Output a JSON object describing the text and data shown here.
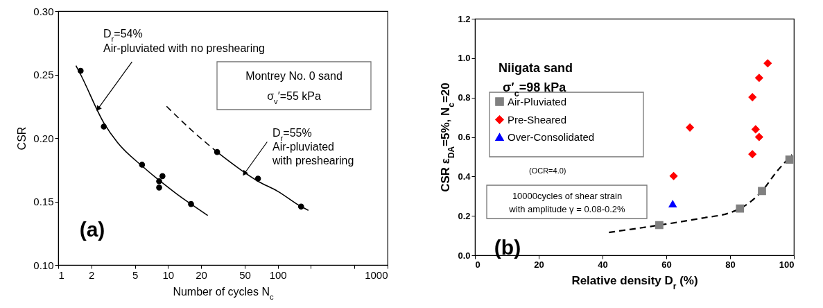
{
  "chart_data": [
    {
      "type": "scatter",
      "xlabel": "Number of cycles N$_{c}$",
      "ylabel": "CSR",
      "log": "x",
      "grid": false,
      "xlim": [
        1,
        1000
      ],
      "xticks": [
        1,
        2,
        5,
        10,
        20,
        50,
        100,
        {
          "value": 200,
          "label": null
        },
        {
          "value": 500,
          "label": null
        },
        1000
      ],
      "ylim": [
        0.1,
        0.3
      ],
      "yticks": [
        {
          "value": 0.1,
          "label": "0.10"
        },
        {
          "value": 0.15,
          "label": "0.15"
        },
        {
          "value": 0.2,
          "label": "0.20"
        },
        {
          "value": 0.25,
          "label": "0.25"
        },
        {
          "value": 0.3,
          "label": "0.30"
        }
      ],
      "annotations": [
        "D$_{r}$=54%",
        {
          "text": "Air-pluviated with no preshearing",
          "x": 2.3,
          "y": 0.223
        },
        "Montrey No. 0 sand",
        "σ$_{v}$′=55 kPa",
        {
          "text": "D$_{r}$=55%",
          "x": 49.6,
          "y": 0.172
        },
        "Air-pluviated",
        "with preshearing",
        "(a)"
      ],
      "series": [
        {
          "color": "#000000",
          "marker": "circle",
          "x": [
            1.6,
            2.6,
            5.8,
            8.3,
            8.9,
            8.3,
            16.2
          ],
          "values": [
            0.253,
            0.209,
            0.179,
            0.166,
            0.17,
            0.161,
            0.148
          ]
        },
        {
          "type": "line",
          "color": "#000000",
          "line_style": "solid",
          "x": [
            1.45,
            1.6,
            2.6,
            3.5,
            5.8,
            8.5,
            12,
            16.2,
            23
          ],
          "values": [
            0.257,
            0.25,
            0.212,
            0.196,
            0.178,
            0.166,
            0.156,
            0.148,
            0.139
          ]
        },
        {
          "color": "#000000",
          "marker": "circle",
          "x": [
            28,
            66,
            163
          ],
          "values": [
            0.189,
            0.168,
            0.146
          ]
        },
        {
          "type": "line",
          "color": "#000000",
          "line_style": "dashed",
          "x": [
            9.7,
            16,
            28
          ],
          "values": [
            0.225,
            0.207,
            0.189
          ]
        },
        {
          "type": "line",
          "color": "#000000",
          "line_style": "solid",
          "x": [
            28,
            66,
            100,
            163,
            190
          ],
          "values": [
            0.189,
            0.166,
            0.158,
            0.146,
            0.143
          ]
        }
      ]
    },
    {
      "type": "scatter",
      "xlabel": "Relative density D$_{r}$ (%)",
      "ylabel": "CSR  ε$_{DA}$=5%,  N$_{c}$=20",
      "grid": false,
      "legend": "top left",
      "xlim": [
        0,
        100
      ],
      "xticks": [
        0,
        20,
        40,
        60,
        80,
        100
      ],
      "ylim": [
        0,
        1.2
      ],
      "yticks": [
        {
          "value": 0,
          "label": "0.0"
        },
        0.2,
        0.4,
        0.6,
        0.8,
        {
          "value": 1,
          "label": "1.0"
        },
        1.2
      ],
      "annotations": [
        "Niigata sand",
        "σ′$_{c}$=98 kPa",
        "(OCR=4.0)",
        "10000cycles of shear strain",
        "with amplitude γ = 0.08-0.2%",
        "(b)"
      ],
      "series": [
        {
          "name": "Air-Pluviated",
          "color": "#808080",
          "marker": "square",
          "x": [
            57.8,
            83.1,
            90,
            98.6
          ],
          "values": [
            0.153,
            0.237,
            0.326,
            0.485
          ]
        },
        {
          "name": "Pre-Sheared",
          "color": "#ff0000",
          "marker": "diamond",
          "x": [
            62.3,
            67.4,
            87,
            87,
            88,
            89.1,
            89.1,
            91.8
          ],
          "values": [
            0.402,
            0.648,
            0.513,
            0.802,
            0.639,
            0.6,
            0.9,
            0.974
          ]
        },
        {
          "name": "Over-Consolidated",
          "color": "#0000ff",
          "marker": "triangle",
          "x": [
            62
          ],
          "values": [
            0.261
          ]
        },
        {
          "type": "line",
          "color": "#000000",
          "line_style": "dashed",
          "x": [
            42,
            57.8,
            71.4,
            79.8,
            83.1,
            90,
            94.6,
            99.4
          ],
          "values": [
            0.116,
            0.153,
            0.189,
            0.215,
            0.237,
            0.326,
            0.424,
            0.51
          ]
        }
      ]
    }
  ]
}
